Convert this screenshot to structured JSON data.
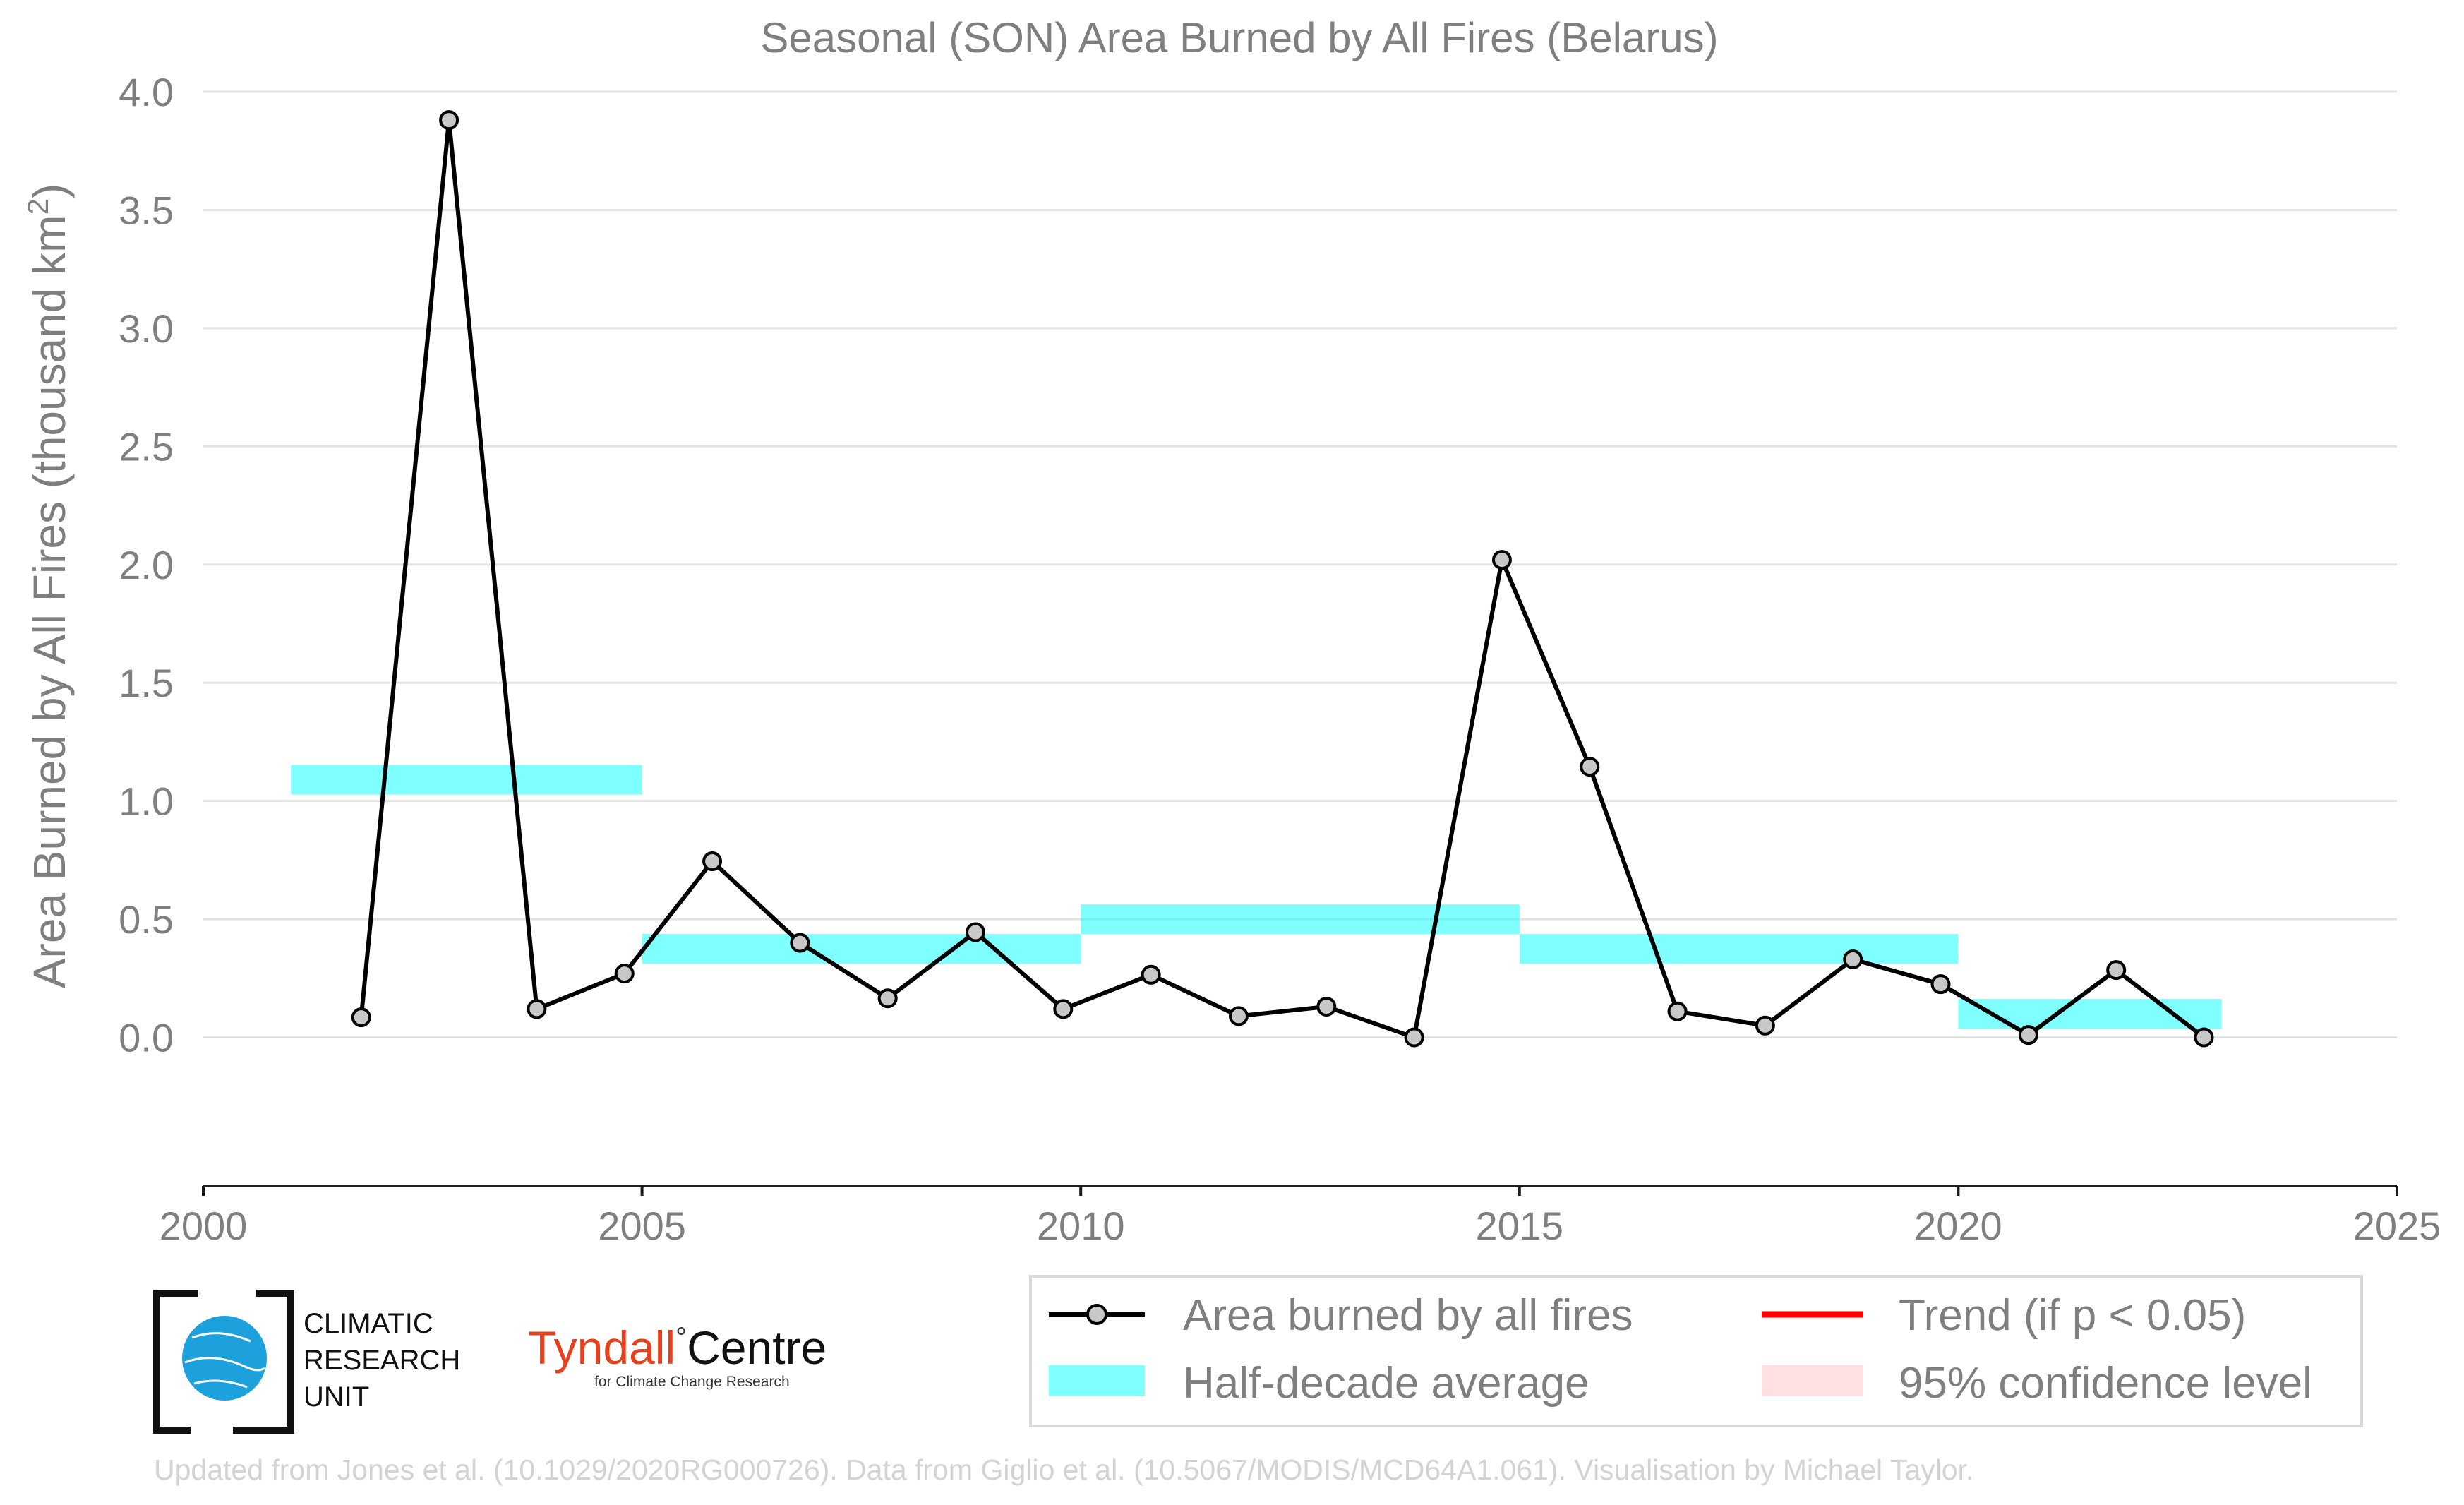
{
  "chart_data": {
    "type": "line",
    "title": "Seasonal (SON) Area Burned by All Fires (Belarus)",
    "xlabel": "",
    "ylabel": "Area Burned by All Fires (thousand km",
    "ylabel_superscript": "2",
    "ylabel_suffix": ")",
    "xlim": [
      2000,
      2025
    ],
    "ylim": [
      -0.3,
      4.0
    ],
    "x_ticks": [
      2000,
      2005,
      2010,
      2015,
      2020,
      2025
    ],
    "x_tick_labels": [
      "2000",
      "2005",
      "2010",
      "2015",
      "2020",
      "2025"
    ],
    "y_ticks": [
      0.0,
      0.5,
      1.0,
      1.5,
      2.0,
      2.5,
      3.0,
      3.5,
      4.0
    ],
    "y_tick_labels": [
      "0.0",
      "0.5",
      "1.0",
      "1.5",
      "2.0",
      "2.5",
      "3.0",
      "3.5",
      "4.0"
    ],
    "grid": "horizontal",
    "legend_position": "bottom-right",
    "series": [
      {
        "name": "Area burned by all fires",
        "color": "#000000",
        "marker_fill": "#c8c8c8",
        "x": [
          2001.8,
          2002.8,
          2003.8,
          2004.8,
          2005.8,
          2006.8,
          2007.8,
          2008.8,
          2009.8,
          2010.8,
          2011.8,
          2012.8,
          2013.8,
          2014.8,
          2015.8,
          2016.8,
          2017.8,
          2018.8,
          2019.8,
          2020.8,
          2021.8,
          2022.8
        ],
        "y": [
          0.085,
          3.88,
          0.12,
          0.27,
          0.745,
          0.4,
          0.165,
          0.445,
          0.12,
          0.265,
          0.09,
          0.13,
          0.0,
          2.02,
          1.145,
          0.11,
          0.05,
          0.33,
          0.225,
          0.01,
          0.285,
          0.0
        ]
      }
    ],
    "half_decade_average": {
      "name": "Half-decade average",
      "color": "#00ffff",
      "segments": [
        {
          "x_start": 2001,
          "x_end": 2005,
          "value": 1.09
        },
        {
          "x_start": 2005,
          "x_end": 2010,
          "value": 0.375
        },
        {
          "x_start": 2010,
          "x_end": 2015,
          "value": 0.5
        },
        {
          "x_start": 2015,
          "x_end": 2020,
          "value": 0.375
        },
        {
          "x_start": 2020,
          "x_end": 2023,
          "value": 0.1
        }
      ]
    },
    "legend": [
      {
        "label": "Area burned by all fires",
        "kind": "line-marker",
        "color": "#000000"
      },
      {
        "label": "Trend (if p < 0.05)",
        "kind": "line",
        "color": "#ff0000"
      },
      {
        "label": "Half-decade average",
        "kind": "band",
        "color": "#00ffff"
      },
      {
        "label": "95% confidence level",
        "kind": "band",
        "color": "#ffcccc"
      }
    ]
  },
  "logos": {
    "cru_lines": [
      "CLIMATIC",
      "RESEARCH",
      "UNIT"
    ],
    "tyndall_name": "Tyndall",
    "tyndall_degree": "°",
    "tyndall_centre": "Centre",
    "tyndall_sub": "for Climate Change Research",
    "tyndall_color": "#e8401c",
    "cru_globe_color": "#1da1dc"
  },
  "credit": "Updated from Jones et al. (10.1029/2020RG000726). Data from Giglio et al. (10.5067/MODIS/MCD64A1.061). Visualisation by Michael Taylor."
}
